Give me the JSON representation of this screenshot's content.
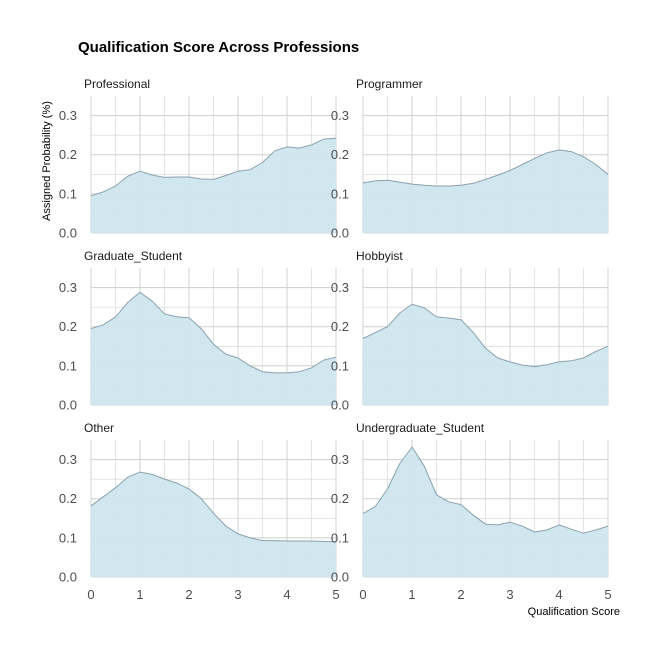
{
  "chart_data": {
    "type": "area",
    "title": "Qualification Score Across Professions",
    "xlabel": "Qualification Score",
    "ylabel": "Assigned Probability (%)",
    "xlim": [
      0,
      5
    ],
    "ylim": [
      0,
      0.35
    ],
    "x_ticks": [
      "0",
      "1",
      "2",
      "3",
      "4",
      "5"
    ],
    "y_ticks": [
      "0.0",
      "0.1",
      "0.2",
      "0.3"
    ],
    "grid": true,
    "fill_color": "#cde6ee",
    "line_color": "#8aa2ad",
    "grid_color": "#d4d4d4",
    "x": [
      0,
      0.25,
      0.5,
      0.75,
      1,
      1.25,
      1.5,
      1.75,
      2,
      2.25,
      2.5,
      2.75,
      3,
      3.25,
      3.5,
      3.75,
      4,
      4.25,
      4.5,
      4.75,
      5
    ],
    "panels": [
      {
        "name": "Professional",
        "values": [
          0.095,
          0.105,
          0.12,
          0.145,
          0.158,
          0.148,
          0.142,
          0.143,
          0.143,
          0.138,
          0.137,
          0.147,
          0.158,
          0.162,
          0.18,
          0.21,
          0.22,
          0.217,
          0.225,
          0.24,
          0.242
        ]
      },
      {
        "name": "Programmer",
        "values": [
          0.128,
          0.133,
          0.135,
          0.13,
          0.125,
          0.122,
          0.12,
          0.12,
          0.122,
          0.127,
          0.137,
          0.148,
          0.16,
          0.175,
          0.19,
          0.205,
          0.212,
          0.208,
          0.195,
          0.175,
          0.15
        ]
      },
      {
        "name": "Graduate_Student",
        "values": [
          0.195,
          0.205,
          0.225,
          0.262,
          0.288,
          0.265,
          0.233,
          0.225,
          0.223,
          0.195,
          0.155,
          0.13,
          0.12,
          0.1,
          0.085,
          0.082,
          0.082,
          0.085,
          0.095,
          0.115,
          0.122
        ]
      },
      {
        "name": "Hobbyist",
        "values": [
          0.17,
          0.185,
          0.2,
          0.235,
          0.257,
          0.248,
          0.225,
          0.222,
          0.218,
          0.185,
          0.145,
          0.12,
          0.11,
          0.102,
          0.098,
          0.103,
          0.11,
          0.113,
          0.12,
          0.137,
          0.15
        ]
      },
      {
        "name": "Other",
        "values": [
          0.182,
          0.205,
          0.228,
          0.255,
          0.268,
          0.262,
          0.25,
          0.24,
          0.225,
          0.2,
          0.163,
          0.13,
          0.11,
          0.1,
          0.093,
          0.093,
          0.092,
          0.092,
          0.092,
          0.091,
          0.09
        ]
      },
      {
        "name": "Undergraduate_Student",
        "values": [
          0.162,
          0.18,
          0.225,
          0.29,
          0.332,
          0.283,
          0.21,
          0.192,
          0.185,
          0.158,
          0.135,
          0.133,
          0.14,
          0.13,
          0.115,
          0.12,
          0.133,
          0.122,
          0.112,
          0.12,
          0.13
        ]
      }
    ]
  }
}
